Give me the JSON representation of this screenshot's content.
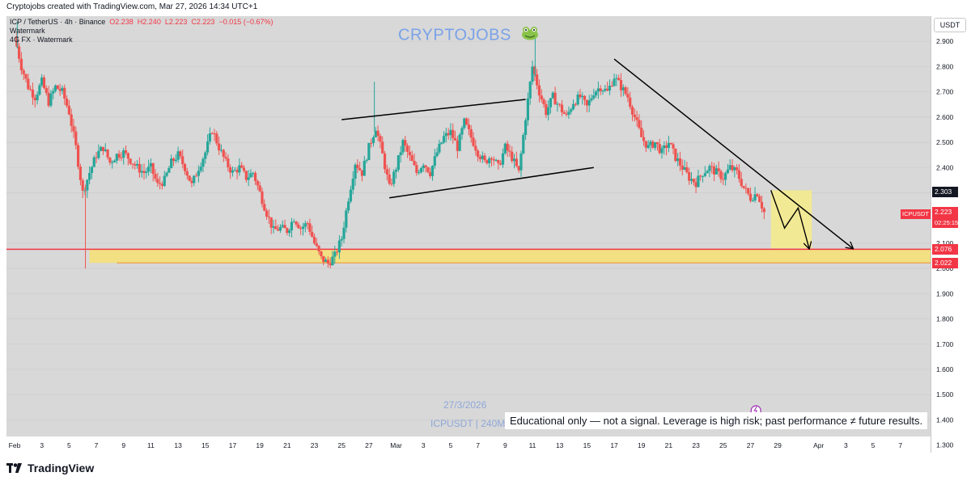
{
  "attribution": "Cryptojobs created with TradingView.com, Mar 27, 2026 14:34 UTC+1",
  "legend": {
    "symbol_line": "ICP / TetherUS · 4h · Binance",
    "open": "O2.238",
    "high": "H2.240",
    "low": "L2.223",
    "close": "C2.223",
    "change": "−0.015 (−0.67%)",
    "line2": "Watermark",
    "line3": "4G FX · Watermark"
  },
  "watermark_title": "CRYPTOJOBS",
  "date_text": "27/3/2026",
  "symbol_text": "ICPUSDT | 240M",
  "disclaimer": "Educational only — not a signal. Leverage is high risk; past performance ≠ future results.",
  "currency": "USDT",
  "brand": "TradingView",
  "price_tags": {
    "current_symbol": "ICPUSDT",
    "current_price": "2.223",
    "countdown": "02:25:15",
    "level_a": "2.303",
    "level_b": "2.076",
    "level_c": "2.022"
  },
  "colors": {
    "up": "#26a69a",
    "down": "#ef5350",
    "support_zone": "#f5e17a",
    "support_line": "#f23645",
    "trendline": "#000000",
    "watermark": "#7aa2e8"
  },
  "chart_data": {
    "type": "candlestick",
    "ylim": [
      1.27,
      3.0
    ],
    "y_ticks": [
      2.9,
      2.8,
      2.7,
      2.6,
      2.5,
      2.4,
      2.3,
      2.1,
      2.0,
      1.9,
      1.8,
      1.7,
      1.6,
      1.5,
      1.4,
      1.3
    ],
    "x_ticks": [
      {
        "label": "Feb",
        "day": 0
      },
      {
        "label": "3",
        "day": 2
      },
      {
        "label": "5",
        "day": 4
      },
      {
        "label": "7",
        "day": 6
      },
      {
        "label": "9",
        "day": 8
      },
      {
        "label": "11",
        "day": 10
      },
      {
        "label": "13",
        "day": 12
      },
      {
        "label": "15",
        "day": 14
      },
      {
        "label": "17",
        "day": 16
      },
      {
        "label": "19",
        "day": 18
      },
      {
        "label": "21",
        "day": 20
      },
      {
        "label": "23",
        "day": 22
      },
      {
        "label": "25",
        "day": 24
      },
      {
        "label": "27",
        "day": 26
      },
      {
        "label": "Mar",
        "day": 28
      },
      {
        "label": "3",
        "day": 30
      },
      {
        "label": "5",
        "day": 32
      },
      {
        "label": "7",
        "day": 34
      },
      {
        "label": "9",
        "day": 36
      },
      {
        "label": "11",
        "day": 38
      },
      {
        "label": "13",
        "day": 40
      },
      {
        "label": "15",
        "day": 42
      },
      {
        "label": "17",
        "day": 44
      },
      {
        "label": "19",
        "day": 46
      },
      {
        "label": "21",
        "day": 48
      },
      {
        "label": "23",
        "day": 50
      },
      {
        "label": "25",
        "day": 52
      },
      {
        "label": "27",
        "day": 54
      },
      {
        "label": "29",
        "day": 56
      },
      {
        "label": "Apr",
        "day": 59
      },
      {
        "label": "3",
        "day": 61
      },
      {
        "label": "5",
        "day": 63
      },
      {
        "label": "7",
        "day": 65
      }
    ],
    "price_path": [
      [
        0.0,
        2.92
      ],
      [
        0.5,
        2.8
      ],
      [
        1.0,
        2.72
      ],
      [
        1.5,
        2.68
      ],
      [
        2.0,
        2.74
      ],
      [
        2.5,
        2.66
      ],
      [
        3.0,
        2.72
      ],
      [
        3.5,
        2.7
      ],
      [
        4.0,
        2.62
      ],
      [
        4.5,
        2.48
      ],
      [
        5.0,
        2.3
      ],
      [
        5.5,
        2.38
      ],
      [
        6.0,
        2.45
      ],
      [
        6.5,
        2.48
      ],
      [
        7.0,
        2.42
      ],
      [
        7.5,
        2.45
      ],
      [
        8.0,
        2.46
      ],
      [
        8.5,
        2.43
      ],
      [
        9.0,
        2.4
      ],
      [
        9.5,
        2.38
      ],
      [
        10.0,
        2.4
      ],
      [
        10.5,
        2.33
      ],
      [
        11.0,
        2.35
      ],
      [
        11.5,
        2.42
      ],
      [
        12.0,
        2.45
      ],
      [
        12.5,
        2.4
      ],
      [
        13.0,
        2.33
      ],
      [
        13.5,
        2.4
      ],
      [
        14.0,
        2.46
      ],
      [
        14.5,
        2.55
      ],
      [
        15.0,
        2.48
      ],
      [
        15.5,
        2.42
      ],
      [
        16.0,
        2.38
      ],
      [
        16.5,
        2.4
      ],
      [
        17.0,
        2.36
      ],
      [
        17.5,
        2.38
      ],
      [
        18.0,
        2.3
      ],
      [
        18.5,
        2.22
      ],
      [
        19.0,
        2.15
      ],
      [
        19.5,
        2.16
      ],
      [
        20.0,
        2.15
      ],
      [
        20.5,
        2.2
      ],
      [
        21.0,
        2.16
      ],
      [
        21.5,
        2.18
      ],
      [
        22.0,
        2.1
      ],
      [
        22.5,
        2.04
      ],
      [
        23.0,
        2.02
      ],
      [
        23.5,
        2.05
      ],
      [
        24.0,
        2.12
      ],
      [
        24.5,
        2.28
      ],
      [
        25.0,
        2.42
      ],
      [
        25.5,
        2.38
      ],
      [
        26.0,
        2.48
      ],
      [
        26.5,
        2.56
      ],
      [
        27.0,
        2.45
      ],
      [
        27.5,
        2.32
      ],
      [
        28.0,
        2.4
      ],
      [
        28.5,
        2.5
      ],
      [
        29.0,
        2.44
      ],
      [
        29.5,
        2.38
      ],
      [
        30.0,
        2.42
      ],
      [
        30.5,
        2.38
      ],
      [
        31.0,
        2.46
      ],
      [
        31.5,
        2.52
      ],
      [
        32.0,
        2.54
      ],
      [
        32.5,
        2.48
      ],
      [
        33.0,
        2.58
      ],
      [
        33.5,
        2.52
      ],
      [
        34.0,
        2.46
      ],
      [
        34.5,
        2.42
      ],
      [
        35.0,
        2.45
      ],
      [
        35.5,
        2.4
      ],
      [
        36.0,
        2.48
      ],
      [
        36.5,
        2.44
      ],
      [
        37.0,
        2.38
      ],
      [
        37.5,
        2.6
      ],
      [
        38.0,
        2.8
      ],
      [
        38.5,
        2.7
      ],
      [
        39.0,
        2.62
      ],
      [
        39.5,
        2.68
      ],
      [
        40.0,
        2.64
      ],
      [
        40.5,
        2.6
      ],
      [
        41.0,
        2.66
      ],
      [
        41.5,
        2.68
      ],
      [
        42.0,
        2.64
      ],
      [
        42.5,
        2.7
      ],
      [
        43.0,
        2.72
      ],
      [
        43.5,
        2.7
      ],
      [
        44.0,
        2.76
      ],
      [
        44.5,
        2.72
      ],
      [
        45.0,
        2.68
      ],
      [
        45.5,
        2.6
      ],
      [
        46.0,
        2.52
      ],
      [
        46.5,
        2.48
      ],
      [
        47.0,
        2.5
      ],
      [
        47.5,
        2.46
      ],
      [
        48.0,
        2.5
      ],
      [
        48.5,
        2.44
      ],
      [
        49.0,
        2.4
      ],
      [
        49.5,
        2.36
      ],
      [
        50.0,
        2.34
      ],
      [
        50.5,
        2.38
      ],
      [
        51.0,
        2.4
      ],
      [
        51.5,
        2.38
      ],
      [
        52.0,
        2.36
      ],
      [
        52.5,
        2.4
      ],
      [
        53.0,
        2.38
      ],
      [
        53.5,
        2.32
      ],
      [
        54.0,
        2.28
      ],
      [
        54.5,
        2.3
      ],
      [
        55.0,
        2.223
      ]
    ],
    "support_zone": {
      "from": 2.022,
      "to": 2.076
    },
    "support_line": 2.076,
    "lower_line": 2.022,
    "ascending_channel": {
      "upper": [
        [
          24.0,
          2.59
        ],
        [
          37.5,
          2.67
        ]
      ],
      "lower": [
        [
          27.5,
          2.28
        ],
        [
          42.5,
          2.4
        ]
      ]
    },
    "descending_trendline": [
      [
        44.0,
        2.83
      ],
      [
        61.5,
        2.08
      ]
    ],
    "projection_box": {
      "x_from": 55.5,
      "x_to": 58.5,
      "y_from": 2.08,
      "y_to": 2.31
    },
    "projection_path": [
      [
        55.5,
        2.31
      ],
      [
        56.5,
        2.16
      ],
      [
        57.5,
        2.24
      ],
      [
        58.3,
        2.08
      ]
    ]
  }
}
